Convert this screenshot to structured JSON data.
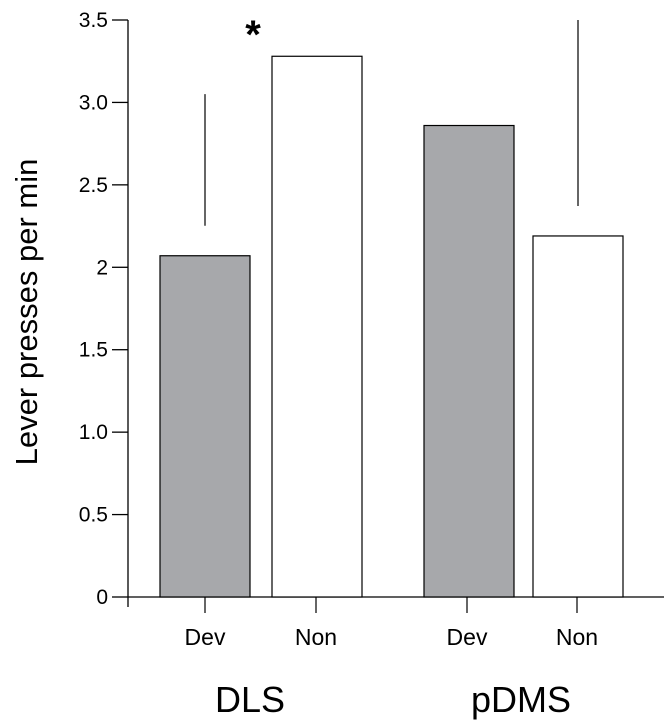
{
  "chart_data": {
    "type": "bar",
    "title": "",
    "xlabel": "",
    "ylabel": "Lever presses per min",
    "ylim": [
      0,
      3.5
    ],
    "yticks": [
      {
        "value": 0,
        "label": "0"
      },
      {
        "value": 0.5,
        "label": "0.5"
      },
      {
        "value": 1.0,
        "label": "1.0"
      },
      {
        "value": 1.5,
        "label": "1.5"
      },
      {
        "value": 2.0,
        "label": "2"
      },
      {
        "value": 2.5,
        "label": "2.5"
      },
      {
        "value": 3.0,
        "label": "3.0"
      },
      {
        "value": 3.5,
        "label": "3.5"
      }
    ],
    "groups": [
      "DLS",
      "pDMS"
    ],
    "bars": [
      {
        "group": "DLS",
        "category": "Dev",
        "value": 2.07,
        "error_top": 3.05,
        "fill": "#a7a8ab"
      },
      {
        "group": "DLS",
        "category": "Non",
        "value": 3.28,
        "error_top": null,
        "fill": "#ffffff"
      },
      {
        "group": "pDMS",
        "category": "Dev",
        "value": 2.86,
        "error_top": null,
        "fill": "#a7a8ab"
      },
      {
        "group": "pDMS",
        "category": "Non",
        "value": 2.19,
        "error_top": 3.5,
        "fill": "#ffffff"
      }
    ],
    "annotations": [
      {
        "text": "*",
        "group": "DLS",
        "between": "Dev-Non"
      }
    ],
    "grid": false,
    "legend": "none"
  }
}
